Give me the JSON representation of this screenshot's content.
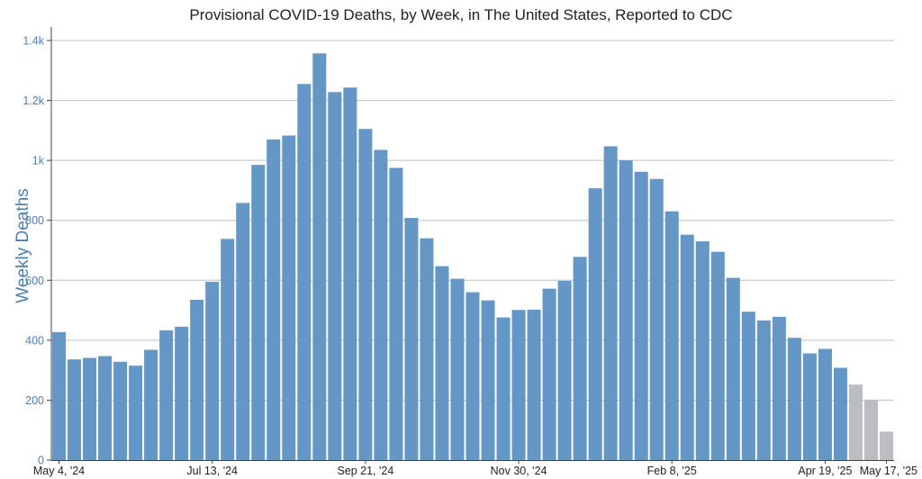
{
  "chart_data": {
    "type": "bar",
    "title": "Provisional COVID-19 Deaths, by Week, in The United States, Reported to CDC",
    "ylabel": "Weekly Deaths",
    "xlabel": "",
    "ylim": [
      0,
      1450
    ],
    "y_ticks": [
      {
        "value": 0,
        "label": "0"
      },
      {
        "value": 200,
        "label": "200"
      },
      {
        "value": 400,
        "label": "400"
      },
      {
        "value": 600,
        "label": "600"
      },
      {
        "value": 800,
        "label": "800"
      },
      {
        "value": 1000,
        "label": "1k"
      },
      {
        "value": 1200,
        "label": "1.2k"
      },
      {
        "value": 1400,
        "label": "1.4k"
      }
    ],
    "x_ticks": [
      {
        "index": 0,
        "label": "May 4, '24"
      },
      {
        "index": 10,
        "label": "Jul 13, '24"
      },
      {
        "index": 20,
        "label": "Sep 21, '24"
      },
      {
        "index": 30,
        "label": "Nov 30, '24"
      },
      {
        "index": 40,
        "label": "Feb 8, '25"
      },
      {
        "index": 50,
        "label": "Apr 19, '25"
      },
      {
        "index": 54,
        "label": "May 17, '25"
      }
    ],
    "values": [
      427,
      336,
      341,
      347,
      328,
      315,
      368,
      433,
      445,
      535,
      595,
      738,
      858,
      985,
      1070,
      1083,
      1255,
      1357,
      1228,
      1243,
      1105,
      1035,
      975,
      808,
      740,
      647,
      605,
      560,
      533,
      476,
      501,
      502,
      572,
      598,
      678,
      907,
      1047,
      1000,
      962,
      938,
      830,
      752,
      730,
      695,
      608,
      495,
      466,
      478,
      408,
      356,
      371,
      308,
      252,
      200,
      95
    ],
    "incomplete_from_index": 52,
    "colors": {
      "bar": "#6497c6",
      "incomplete_bar": "#bcbdc1",
      "axis_text": "#4a7fb5",
      "grid": "#bfbfbf",
      "axis_line": "#444444",
      "title": "#222222"
    }
  }
}
